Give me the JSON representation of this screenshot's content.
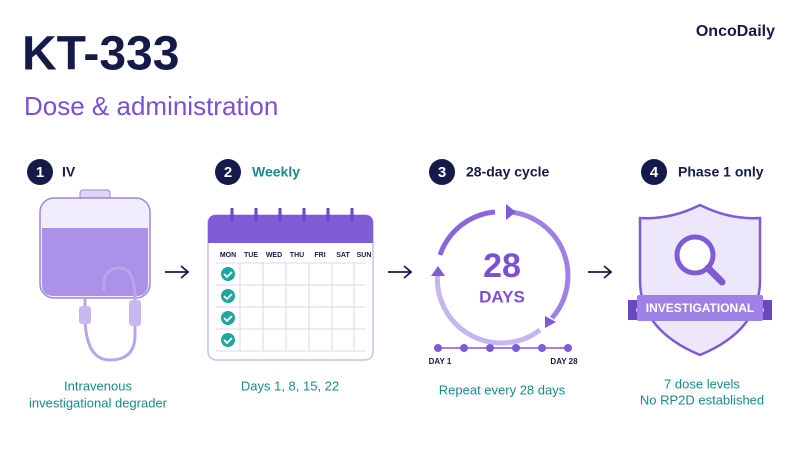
{
  "header": {
    "brand": "OncoDaily",
    "title": "KT-333",
    "subtitle": "Dose & administration"
  },
  "steps": [
    {
      "number": "1",
      "label": "IV",
      "caption": [
        "Intravenous",
        "investigational degrader"
      ]
    },
    {
      "number": "2",
      "label": "Weekly",
      "caption": [
        "Days 1, 8, 15, 22"
      ]
    },
    {
      "number": "3",
      "label": "28-day cycle",
      "caption": [
        "Repeat every 28 days"
      ]
    },
    {
      "number": "4",
      "label": "Phase 1 only",
      "caption": [
        "7 dose levels",
        "No RP2D established"
      ]
    }
  ],
  "calendar": {
    "days": [
      "MON",
      "TUE",
      "WED",
      "THU",
      "FRI",
      "SAT",
      "SUN"
    ]
  },
  "cycle": {
    "number": "28",
    "unit": "DAYS",
    "start": "DAY 1",
    "end": "DAY 28"
  },
  "badge": {
    "text": "INVESTIGATIONAL"
  }
}
